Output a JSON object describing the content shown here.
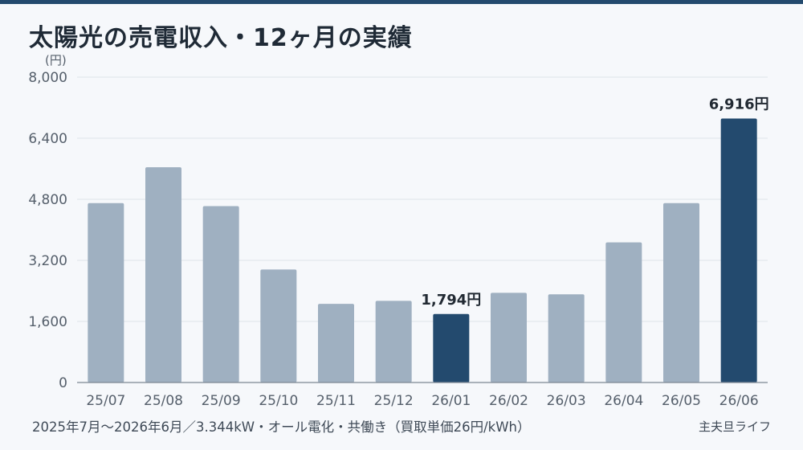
{
  "chart_title": "太陽光の売電収入・12ヶ月の実績",
  "footer_note": "2025年7月〜2026年6月／3.344kW・オール電化・共働き（買取単価26円/kWh）",
  "brand": "主夫旦ライフ",
  "colors": {
    "accent": "#234a6e",
    "bar_normal": "#9fb0c1",
    "bar_highlight": "#234a6e",
    "grid": "#dfe4ea",
    "axis": "#555f6b",
    "label_text": "#222a33",
    "background": "#f6f8fb"
  },
  "chart_data": {
    "type": "bar",
    "title": "太陽光の売電収入・12ヶ月の実績",
    "xlabel": "",
    "ylabel": "(円)",
    "ylim": [
      0,
      8000
    ],
    "yticks": [
      0,
      1600,
      3200,
      4800,
      6400,
      8000
    ],
    "ytick_labels": [
      "0",
      "1,600",
      "3,200",
      "4,800",
      "6,400",
      "8,000"
    ],
    "grid": true,
    "legend": "none",
    "categories": [
      "25/07",
      "25/08",
      "25/09",
      "25/10",
      "25/11",
      "25/12",
      "26/01",
      "26/02",
      "26/03",
      "26/04",
      "26/05",
      "26/06"
    ],
    "values": [
      4700,
      5640,
      4620,
      2960,
      2060,
      2140,
      1794,
      2350,
      2310,
      3670,
      4700,
      6916
    ],
    "highlighted": [
      6,
      11
    ],
    "data_labels": [
      {
        "index": 6,
        "text": "1,794円"
      },
      {
        "index": 11,
        "text": "6,916円"
      }
    ]
  }
}
